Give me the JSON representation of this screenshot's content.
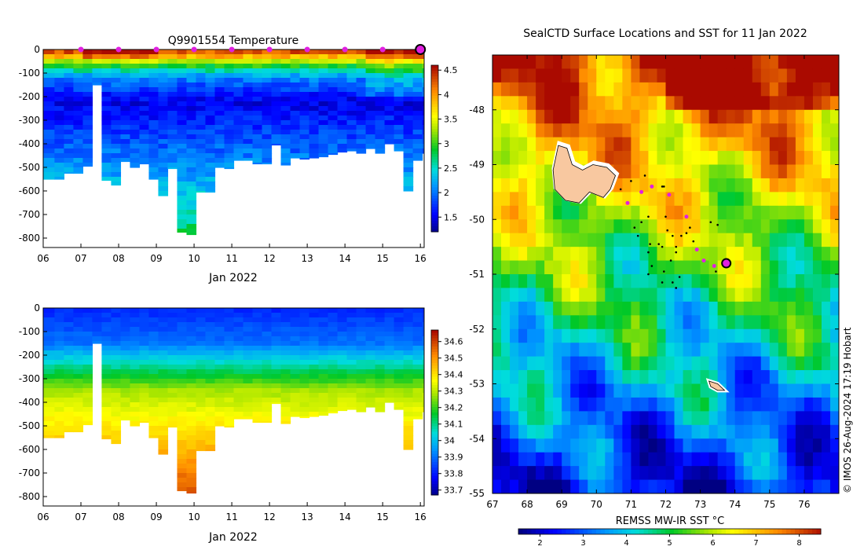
{
  "chart_data": [
    {
      "type": "heatmap",
      "title": "Q9901554  Temperature",
      "xlabel": "Jan 2022",
      "ylabel": "",
      "x_ticks": [
        "06",
        "07",
        "08",
        "09",
        "10",
        "11",
        "12",
        "13",
        "14",
        "15",
        "16"
      ],
      "xlim": [
        6,
        16.1
      ],
      "y_ticks": [
        "0",
        "-100",
        "-200",
        "-300",
        "-400",
        "-500",
        "-600",
        "-700",
        "-800"
      ],
      "ylim": [
        -840,
        0
      ],
      "colorbar_ticks": [
        "4.5",
        "4",
        "3.5",
        "3",
        "2.5",
        "2",
        "1.5"
      ],
      "colorbar_range": [
        1.2,
        4.6
      ],
      "profile_markers_x": [
        7,
        8,
        9,
        10,
        11,
        12,
        13,
        14,
        15
      ],
      "current_marker_x": 16,
      "profile_times": [
        6.0,
        6.3,
        6.55,
        6.8,
        7.05,
        7.3,
        7.55,
        7.8,
        8.05,
        8.3,
        8.55,
        8.8,
        9.05,
        9.3,
        9.55,
        9.8,
        10.05,
        10.3,
        10.55,
        10.8,
        11.05,
        11.3,
        11.55,
        11.8,
        12.05,
        12.3,
        12.55,
        12.8,
        13.05,
        13.3,
        13.55,
        13.8,
        14.05,
        14.3,
        14.55,
        14.8,
        15.05,
        15.3,
        15.55,
        15.8,
        16.05
      ],
      "profile_max_depth": [
        550,
        550,
        525,
        525,
        495,
        150,
        555,
        575,
        475,
        500,
        485,
        550,
        620,
        505,
        775,
        785,
        605,
        605,
        500,
        505,
        470,
        470,
        485,
        485,
        405,
        490,
        460,
        465,
        460,
        455,
        445,
        435,
        430,
        440,
        420,
        440,
        400,
        430,
        600,
        470,
        440
      ]
    },
    {
      "type": "heatmap",
      "title": "",
      "xlabel": "Jan 2022",
      "ylabel": "",
      "x_ticks": [
        "06",
        "07",
        "08",
        "09",
        "10",
        "11",
        "12",
        "13",
        "14",
        "15",
        "16"
      ],
      "xlim": [
        6,
        16.1
      ],
      "y_ticks": [
        "0",
        "-100",
        "-200",
        "-300",
        "-400",
        "-500",
        "-600",
        "-700",
        "-800"
      ],
      "ylim": [
        -840,
        0
      ],
      "colorbar_ticks": [
        "34.6",
        "34.5",
        "34.4",
        "34.3",
        "34.2",
        "34.1",
        "34",
        "33.9",
        "33.8",
        "33.7"
      ],
      "colorbar_range": [
        33.67,
        34.67
      ]
    },
    {
      "type": "heatmap",
      "title": "SealCTD Surface Locations and SST for 11 Jan 2022",
      "xlabel": "",
      "ylabel": "",
      "x_ticks": [
        "67",
        "68",
        "69",
        "70",
        "71",
        "72",
        "73",
        "74",
        "75",
        "76"
      ],
      "xlim": [
        67,
        77
      ],
      "y_ticks": [
        "-48",
        "-49",
        "-50",
        "-51",
        "-52",
        "-53",
        "-54",
        "-55"
      ],
      "ylim": [
        -55,
        -47
      ],
      "colorbar_label": "REMSS MW-IR SST °C",
      "colorbar_ticks": [
        "2",
        "3",
        "4",
        "5",
        "6",
        "7",
        "8"
      ],
      "colorbar_range": [
        1.5,
        8.5
      ],
      "highlight_locations": [
        [
          70.9,
          -49.7
        ],
        [
          71.3,
          -49.5
        ],
        [
          71.6,
          -49.4
        ],
        [
          72.1,
          -49.55
        ],
        [
          72.6,
          -49.95
        ],
        [
          72.9,
          -50.55
        ],
        [
          73.1,
          -50.75
        ],
        [
          73.4,
          -50.85
        ]
      ],
      "current_location": [
        73.75,
        -50.8
      ],
      "track_points": [
        [
          70.7,
          -49.45
        ],
        [
          71.0,
          -49.3
        ],
        [
          71.4,
          -49.2
        ],
        [
          71.9,
          -49.4
        ],
        [
          71.95,
          -49.4
        ],
        [
          72.0,
          -49.95
        ],
        [
          72.05,
          -50.2
        ],
        [
          71.5,
          -49.95
        ],
        [
          71.3,
          -50.05
        ],
        [
          71.1,
          -50.15
        ],
        [
          71.2,
          -50.3
        ],
        [
          71.55,
          -50.45
        ],
        [
          71.8,
          -50.45
        ],
        [
          71.9,
          -50.5
        ],
        [
          72.2,
          -50.3
        ],
        [
          72.3,
          -50.5
        ],
        [
          72.45,
          -50.3
        ],
        [
          72.3,
          -50.6
        ],
        [
          72.15,
          -50.75
        ],
        [
          71.95,
          -50.95
        ],
        [
          71.6,
          -50.85
        ],
        [
          71.5,
          -50.6
        ],
        [
          71.5,
          -51.0
        ],
        [
          71.9,
          -51.15
        ],
        [
          72.2,
          -51.15
        ],
        [
          72.3,
          -51.25
        ],
        [
          73.3,
          -50.05
        ],
        [
          73.5,
          -50.1
        ],
        [
          72.7,
          -50.15
        ],
        [
          72.6,
          -50.25
        ],
        [
          72.8,
          -50.4
        ],
        [
          72.4,
          -51.05
        ],
        [
          73.45,
          -50.95
        ]
      ],
      "islands": [
        "Kerguelen",
        "Heard"
      ]
    }
  ],
  "credit": "© IMOS 26-Aug-2024 17:19 Hobart"
}
